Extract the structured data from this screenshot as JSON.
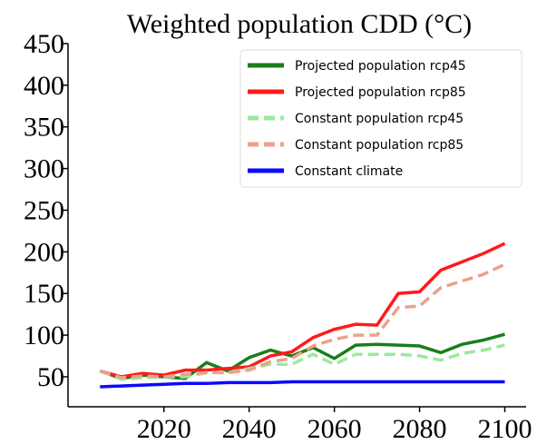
{
  "chart_data": {
    "type": "line",
    "title": "Weighted population CDD (°C)",
    "x": [
      2005,
      2010,
      2015,
      2020,
      2025,
      2030,
      2035,
      2040,
      2045,
      2050,
      2055,
      2060,
      2065,
      2070,
      2075,
      2080,
      2085,
      2090,
      2095,
      2100
    ],
    "series": [
      {
        "name": "Projected population rcp45",
        "color": "#1a7d1a",
        "dash": false,
        "values": [
          57,
          48,
          52,
          50,
          48,
          67,
          57,
          73,
          82,
          75,
          85,
          72,
          88,
          89,
          88,
          87,
          79,
          89,
          94,
          101
        ]
      },
      {
        "name": "Projected population rcp85",
        "color": "#ff1a1a",
        "dash": false,
        "values": [
          57,
          50,
          54,
          52,
          58,
          58,
          60,
          62,
          75,
          80,
          97,
          107,
          113,
          112,
          150,
          152,
          178,
          188,
          198,
          210
        ]
      },
      {
        "name": "Constant population rcp45",
        "color": "#9ee89e",
        "dash": true,
        "values": [
          57,
          47,
          49,
          50,
          50,
          55,
          55,
          60,
          65,
          65,
          77,
          65,
          77,
          77,
          77,
          75,
          70,
          78,
          82,
          88
        ]
      },
      {
        "name": "Constant population rcp85",
        "color": "#eda08a",
        "dash": true,
        "values": [
          57,
          49,
          51,
          50,
          53,
          55,
          55,
          58,
          68,
          72,
          87,
          95,
          100,
          100,
          133,
          135,
          157,
          165,
          173,
          185
        ]
      },
      {
        "name": "Constant climate",
        "color": "#0a0aff",
        "dash": false,
        "values": [
          38,
          39,
          40,
          41,
          42,
          42,
          43,
          43,
          43,
          44,
          44,
          44,
          44,
          44,
          44,
          44,
          44,
          44,
          44,
          44
        ]
      }
    ],
    "xlim": [
      1997.5,
      2105
    ],
    "ylim": [
      14,
      450
    ],
    "xticks": [
      2020,
      2040,
      2060,
      2080,
      2100
    ],
    "yticks": [
      50,
      100,
      150,
      200,
      250,
      300,
      350,
      400,
      450
    ],
    "legend": "upper-right"
  }
}
